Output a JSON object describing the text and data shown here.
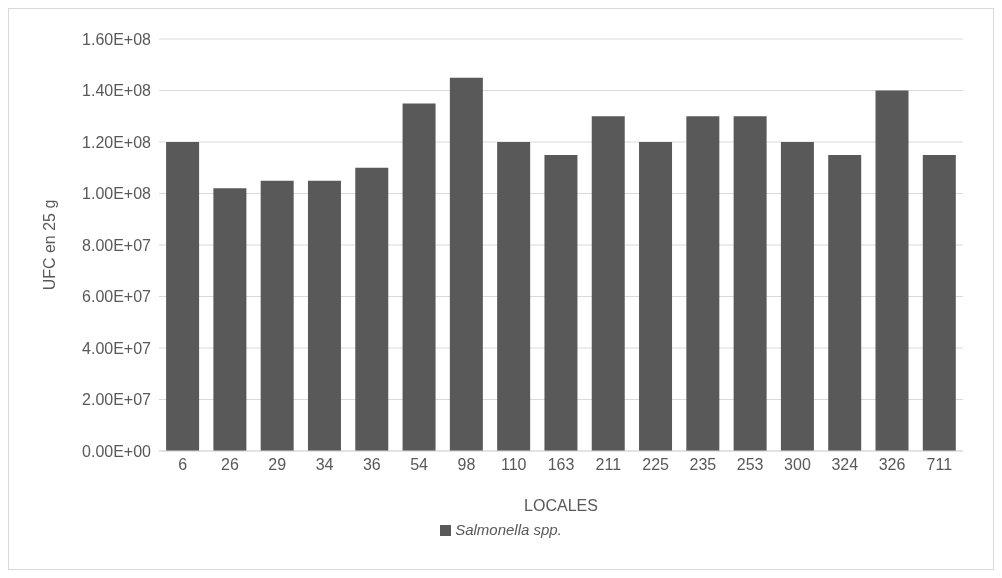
{
  "chart_data": {
    "type": "bar",
    "xlabel": "LOCALES",
    "ylabel": "UFC en 25 g",
    "categories": [
      "6",
      "26",
      "29",
      "34",
      "36",
      "54",
      "98",
      "110",
      "163",
      "211",
      "225",
      "235",
      "253",
      "300",
      "324",
      "326",
      "711"
    ],
    "series": [
      {
        "name": "Salmonella spp.",
        "color": "#595959",
        "values": [
          120000000.0,
          102000000.0,
          105000000.0,
          105000000.0,
          110000000.0,
          135000000.0,
          145000000.0,
          120000000.0,
          115000000.0,
          130000000.0,
          120000000.0,
          130000000.0,
          130000000.0,
          120000000.0,
          115000000.0,
          140000000.0,
          115000000.0
        ]
      }
    ],
    "ylim": [
      0,
      160000000.0
    ],
    "yticks": [
      {
        "value": 0,
        "label": "0.00E+00"
      },
      {
        "value": 20000000.0,
        "label": "2.00E+07"
      },
      {
        "value": 40000000.0,
        "label": "4.00E+07"
      },
      {
        "value": 60000000.0,
        "label": "6.00E+07"
      },
      {
        "value": 80000000.0,
        "label": "8.00E+07"
      },
      {
        "value": 100000000.0,
        "label": "1.00E+08"
      },
      {
        "value": 120000000.0,
        "label": "1.20E+08"
      },
      {
        "value": 140000000.0,
        "label": "1.40E+08"
      },
      {
        "value": 160000000.0,
        "label": "1.60E+08"
      }
    ],
    "grid": "y",
    "legend": "bottom"
  }
}
